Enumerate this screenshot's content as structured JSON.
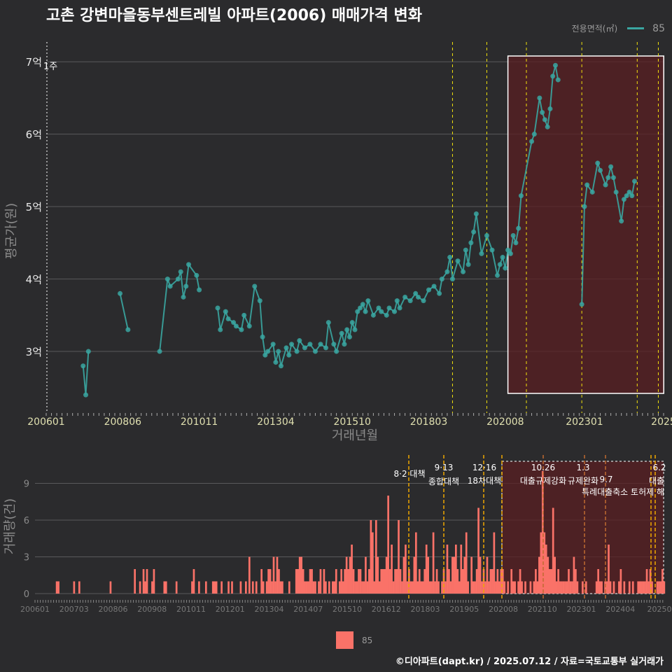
{
  "title": "고촌 강변마을동부센트레빌 아파트(2006) 매매가격 변화",
  "caption": "©디아파트(dapt.kr) / 2025.07.12 / 자료=국토교통부 실거래가",
  "legend_top": {
    "label": "전용면적(㎡)",
    "value": "85"
  },
  "legend_bottom": {
    "value": "85"
  },
  "colors": {
    "bg": "#2b2b2d",
    "line": "#3aa6a1",
    "bar": "#fa7268",
    "policy": "#f2e20c",
    "shade": "#5a1f22"
  },
  "chart_data": [
    {
      "type": "line",
      "title": "고촌 강변마을동부센트레빌 아파트(2006) 매매가격 변화",
      "xlabel": "거래년월",
      "ylabel": "평균가(원)",
      "x_ticks": [
        "200601",
        "200806",
        "201011",
        "201304",
        "201510",
        "201803",
        "202008",
        "202301",
        "2025"
      ],
      "y_ticks": [
        "3억",
        "4억",
        "5억",
        "6억",
        "7억"
      ],
      "y_tick_values": [
        3,
        4,
        5,
        6,
        7
      ],
      "ylim": [
        2.15,
        7.35
      ],
      "xlim_months": [
        0,
        234
      ],
      "extra_label": "1주",
      "policy_lines_month": [
        199,
        210,
        226,
        234,
        3,
        170,
        194,
        217,
        227,
        232
      ],
      "highlight_range_month": [
        175,
        233
      ],
      "series": [
        {
          "name": "85",
          "points": [
            [
              14,
              2.8
            ],
            [
              15,
              2.4
            ],
            [
              16,
              3.0
            ],
            [
              28,
              3.8
            ],
            [
              31,
              3.3
            ],
            [
              43,
              3.0
            ],
            [
              46,
              4.0
            ],
            [
              47,
              3.9
            ],
            [
              50,
              4.0
            ],
            [
              51,
              4.1
            ],
            [
              52,
              3.75
            ],
            [
              53,
              3.9
            ],
            [
              54,
              4.2
            ],
            [
              57,
              4.05
            ],
            [
              58,
              3.85
            ],
            [
              65,
              3.6
            ],
            [
              66,
              3.3
            ],
            [
              68,
              3.55
            ],
            [
              69,
              3.45
            ],
            [
              71,
              3.4
            ],
            [
              72,
              3.35
            ],
            [
              74,
              3.3
            ],
            [
              75,
              3.5
            ],
            [
              77,
              3.35
            ],
            [
              79,
              3.9
            ],
            [
              81,
              3.7
            ],
            [
              82,
              3.2
            ],
            [
              83,
              2.95
            ],
            [
              84,
              3.0
            ],
            [
              86,
              3.1
            ],
            [
              87,
              2.85
            ],
            [
              88,
              3.0
            ],
            [
              89,
              2.8
            ],
            [
              91,
              3.05
            ],
            [
              92,
              2.95
            ],
            [
              93,
              3.1
            ],
            [
              95,
              3.0
            ],
            [
              96,
              3.15
            ],
            [
              98,
              3.05
            ],
            [
              100,
              3.1
            ],
            [
              102,
              3.0
            ],
            [
              104,
              3.1
            ],
            [
              106,
              3.05
            ],
            [
              107,
              3.4
            ],
            [
              109,
              3.1
            ],
            [
              110,
              3.0
            ],
            [
              112,
              3.25
            ],
            [
              113,
              3.1
            ],
            [
              114,
              3.3
            ],
            [
              115,
              3.2
            ],
            [
              116,
              3.4
            ],
            [
              117,
              3.3
            ],
            [
              118,
              3.55
            ],
            [
              119,
              3.6
            ],
            [
              120,
              3.65
            ],
            [
              121,
              3.55
            ],
            [
              122,
              3.7
            ],
            [
              124,
              3.5
            ],
            [
              126,
              3.6
            ],
            [
              127,
              3.55
            ],
            [
              129,
              3.5
            ],
            [
              130,
              3.6
            ],
            [
              132,
              3.55
            ],
            [
              133,
              3.7
            ],
            [
              134,
              3.6
            ],
            [
              136,
              3.75
            ],
            [
              138,
              3.7
            ],
            [
              140,
              3.8
            ],
            [
              141,
              3.75
            ],
            [
              143,
              3.7
            ],
            [
              145,
              3.85
            ],
            [
              147,
              3.9
            ],
            [
              149,
              3.8
            ],
            [
              150,
              4.0
            ],
            [
              152,
              4.1
            ],
            [
              153,
              4.3
            ],
            [
              154,
              4.0
            ],
            [
              156,
              4.25
            ],
            [
              158,
              4.1
            ],
            [
              159,
              4.4
            ],
            [
              160,
              4.2
            ],
            [
              161,
              4.5
            ],
            [
              162,
              4.65
            ],
            [
              163,
              4.9
            ],
            [
              165,
              4.35
            ],
            [
              167,
              4.6
            ],
            [
              169,
              4.4
            ],
            [
              171,
              4.05
            ],
            [
              172,
              4.2
            ],
            [
              173,
              4.3
            ],
            [
              174,
              4.15
            ],
            [
              175,
              4.4
            ],
            [
              176,
              4.35
            ],
            [
              177,
              4.6
            ],
            [
              178,
              4.5
            ],
            [
              179,
              4.7
            ],
            [
              180,
              5.15
            ],
            [
              184,
              5.9
            ],
            [
              185,
              6.0
            ],
            [
              187,
              6.5
            ],
            [
              188,
              6.3
            ],
            [
              189,
              6.2
            ],
            [
              190,
              6.1
            ],
            [
              191,
              6.35
            ],
            [
              192,
              6.8
            ],
            [
              193,
              6.95
            ],
            [
              194,
              6.75
            ],
            [
              203,
              3.65
            ],
            [
              204,
              5.0
            ],
            [
              205,
              5.3
            ],
            [
              207,
              5.2
            ],
            [
              209,
              5.6
            ],
            [
              210,
              5.5
            ],
            [
              212,
              5.3
            ],
            [
              213,
              5.4
            ],
            [
              214,
              5.55
            ],
            [
              215,
              5.4
            ],
            [
              216,
              5.2
            ],
            [
              218,
              4.8
            ],
            [
              219,
              5.1
            ],
            [
              220,
              5.15
            ],
            [
              221,
              5.2
            ],
            [
              222,
              5.15
            ],
            [
              223,
              5.35
            ]
          ]
        }
      ]
    },
    {
      "type": "bar",
      "xlabel": "",
      "ylabel": "거래량(건)",
      "x_ticks": [
        "200601",
        "200703",
        "200806",
        "200908",
        "201011",
        "201201",
        "201304",
        "201407",
        "201510",
        "201612",
        "201803",
        "201905",
        "202008",
        "202110",
        "202301",
        "202404",
        "20250"
      ],
      "y_ticks": [
        "0",
        "3",
        "6",
        "9"
      ],
      "y_tick_values": [
        0,
        3,
        6,
        9
      ],
      "ylim": [
        -0.4,
        11.2
      ],
      "annotations": [
        "8·2 대책",
        "9·13",
        "종합대책",
        "12·16",
        "18차대책",
        "10.26",
        "대출규제강화",
        "1.3",
        "규제완화",
        "9.7",
        "특례대출축소 토허제 해",
        "6.2",
        "대출"
      ],
      "series": [
        {
          "name": "85",
          "values": [
            0,
            0,
            0,
            0,
            0,
            0,
            0,
            0,
            0,
            0,
            0,
            0,
            1,
            1,
            0,
            0,
            0,
            0,
            0,
            0,
            0,
            0,
            1,
            0,
            0,
            1,
            0,
            0,
            0,
            0,
            0,
            0,
            0,
            0,
            0,
            0,
            0,
            0,
            0,
            0,
            0,
            0,
            0,
            1,
            0,
            0,
            0,
            0,
            0,
            0,
            0,
            0,
            0,
            0,
            0,
            0,
            0,
            2,
            0,
            0,
            1,
            0,
            2,
            1,
            2,
            0,
            0,
            1,
            2,
            0,
            0,
            0,
            0,
            0,
            1,
            1,
            0,
            0,
            0,
            0,
            0,
            1,
            0,
            0,
            0,
            0,
            0,
            0,
            0,
            0,
            1,
            2,
            0,
            0,
            1,
            0,
            0,
            0,
            1,
            0,
            0,
            0,
            1,
            1,
            1,
            0,
            0,
            1,
            0,
            0,
            0,
            1,
            0,
            1,
            0,
            0,
            0,
            0,
            1,
            0,
            0,
            1,
            0,
            3,
            0,
            1,
            0,
            1,
            0,
            0,
            2,
            1,
            0,
            1,
            2,
            2,
            1,
            3,
            1,
            3,
            2,
            1,
            1,
            0,
            0,
            0,
            1,
            0,
            0,
            0,
            2,
            2,
            3,
            3,
            2,
            1,
            1,
            1,
            2,
            2,
            1,
            1,
            0,
            1,
            2,
            0,
            2,
            1,
            0,
            1,
            0,
            1,
            1,
            2,
            0,
            1,
            2,
            1,
            2,
            3,
            2,
            3,
            4,
            2,
            1,
            1,
            2,
            2,
            1,
            1,
            3,
            1,
            2,
            6,
            5,
            1,
            6,
            3,
            1,
            2,
            2,
            2,
            3,
            8,
            2,
            4,
            1,
            2,
            2,
            6,
            2,
            1,
            3,
            4,
            1,
            2,
            1,
            1,
            3,
            5,
            1,
            2,
            1,
            1,
            2,
            4,
            3,
            1,
            1,
            5,
            1,
            2,
            1,
            0,
            1,
            2,
            1,
            4,
            2,
            1,
            3,
            3,
            4,
            2,
            1,
            4,
            2,
            3,
            5,
            1,
            0,
            3,
            1,
            1,
            2,
            7,
            3,
            1,
            2,
            1,
            3,
            1,
            2,
            2,
            5,
            1,
            2,
            1,
            2,
            2,
            1,
            0,
            1,
            0,
            2,
            1,
            1,
            0,
            1,
            2,
            1,
            0,
            1,
            0,
            0,
            1,
            0,
            1,
            2,
            1,
            3,
            5,
            10,
            5,
            4,
            3,
            2,
            2,
            7,
            3,
            1,
            2,
            1,
            1,
            1,
            1,
            1,
            2,
            1,
            1,
            3,
            2,
            1,
            0,
            0,
            1,
            0,
            1,
            0,
            0,
            0,
            0,
            0,
            1,
            2,
            1,
            1,
            0,
            1,
            1,
            4,
            1,
            0,
            1,
            0,
            0,
            1,
            2,
            0,
            1,
            0,
            0,
            1,
            0,
            1,
            0,
            0,
            1,
            1,
            1,
            1,
            1,
            2,
            1,
            2,
            1,
            0,
            0,
            1,
            1,
            1,
            2,
            1
          ]
        }
      ]
    }
  ]
}
